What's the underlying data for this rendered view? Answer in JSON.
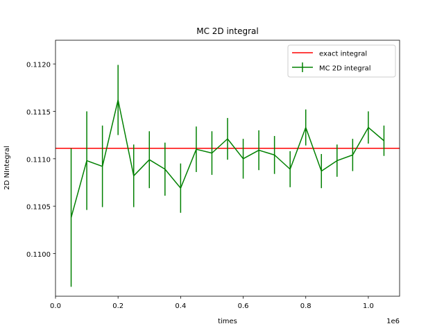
{
  "chart_data": {
    "type": "line",
    "title": "MC 2D integral",
    "xlabel": "times",
    "ylabel": "2D NIntegral",
    "x_offset_label": "1e6",
    "xlim": [
      0,
      1.1
    ],
    "ylim": [
      0.10955,
      0.11225
    ],
    "x_ticks": [
      0.0,
      0.2,
      0.4,
      0.6,
      0.8,
      1.0
    ],
    "x_tick_labels": [
      "0.0",
      "0.2",
      "0.4",
      "0.6",
      "0.8",
      "1.0"
    ],
    "y_ticks": [
      0.11,
      0.1105,
      0.111,
      0.1115,
      0.112
    ],
    "y_tick_labels": [
      "0.1100",
      "0.1105",
      "0.1110",
      "0.1115",
      "0.1120"
    ],
    "grid": false,
    "legend_position": "top-right",
    "colors": {
      "exact": "#ff0000",
      "mc": "#008000"
    },
    "exact": {
      "name": "exact integral",
      "value": 0.11111
    },
    "series": [
      {
        "name": "MC 2D integral",
        "x": [
          0.05,
          0.1,
          0.15,
          0.2,
          0.25,
          0.3,
          0.35,
          0.4,
          0.45,
          0.5,
          0.55,
          0.6,
          0.65,
          0.7,
          0.75,
          0.8,
          0.85,
          0.9,
          0.95,
          1.0,
          1.05
        ],
        "y": [
          0.11038,
          0.11098,
          0.11092,
          0.11162,
          0.11082,
          0.11099,
          0.11089,
          0.11069,
          0.1111,
          0.11106,
          0.11121,
          0.111,
          0.11109,
          0.11104,
          0.11089,
          0.11133,
          0.11087,
          0.11098,
          0.11104,
          0.11133,
          0.11119
        ],
        "err": [
          0.00073,
          0.00052,
          0.00043,
          0.00037,
          0.00033,
          0.0003,
          0.00028,
          0.00026,
          0.00024,
          0.00023,
          0.00022,
          0.00021,
          0.00021,
          0.0002,
          0.00019,
          0.00019,
          0.00018,
          0.00017,
          0.00017,
          0.00017,
          0.00016
        ]
      }
    ]
  }
}
